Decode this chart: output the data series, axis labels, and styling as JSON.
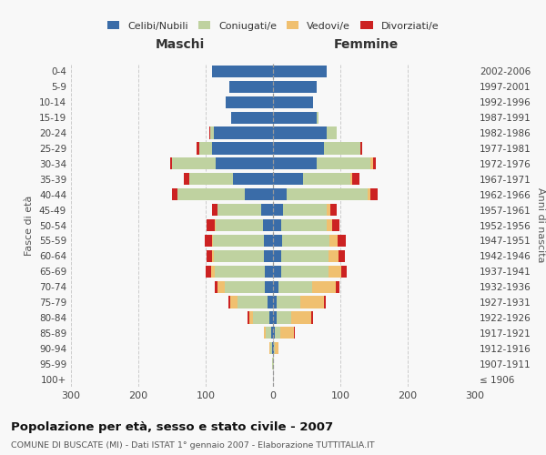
{
  "age_groups": [
    "100+",
    "95-99",
    "90-94",
    "85-89",
    "80-84",
    "75-79",
    "70-74",
    "65-69",
    "60-64",
    "55-59",
    "50-54",
    "45-49",
    "40-44",
    "35-39",
    "30-34",
    "25-29",
    "20-24",
    "15-19",
    "10-14",
    "5-9",
    "0-4"
  ],
  "birth_years": [
    "≤ 1906",
    "1907-1911",
    "1912-1916",
    "1917-1921",
    "1922-1926",
    "1927-1931",
    "1932-1936",
    "1937-1941",
    "1942-1946",
    "1947-1951",
    "1952-1956",
    "1957-1961",
    "1962-1966",
    "1967-1971",
    "1972-1976",
    "1977-1981",
    "1982-1986",
    "1987-1991",
    "1992-1996",
    "1997-2001",
    "2002-2006"
  ],
  "maschi": {
    "celibi": [
      0,
      0,
      1,
      3,
      5,
      8,
      12,
      12,
      13,
      14,
      15,
      18,
      42,
      60,
      85,
      90,
      88,
      62,
      70,
      65,
      90
    ],
    "coniugati": [
      0,
      1,
      3,
      8,
      25,
      45,
      60,
      75,
      75,
      75,
      70,
      65,
      100,
      65,
      65,
      20,
      5,
      0,
      0,
      0,
      0
    ],
    "vedovi": [
      0,
      0,
      1,
      2,
      5,
      10,
      10,
      5,
      3,
      2,
      1,
      0,
      0,
      0,
      0,
      0,
      0,
      0,
      0,
      0,
      0
    ],
    "divorziati": [
      0,
      0,
      0,
      0,
      3,
      3,
      5,
      8,
      8,
      10,
      12,
      8,
      8,
      8,
      3,
      3,
      2,
      0,
      0,
      0,
      0
    ]
  },
  "femmine": {
    "nubili": [
      0,
      0,
      1,
      3,
      5,
      5,
      8,
      12,
      12,
      14,
      12,
      15,
      20,
      45,
      65,
      75,
      80,
      65,
      60,
      65,
      80
    ],
    "coniugate": [
      0,
      1,
      2,
      8,
      22,
      35,
      50,
      70,
      70,
      70,
      68,
      65,
      120,
      70,
      80,
      55,
      15,
      3,
      0,
      0,
      0
    ],
    "vedovi": [
      0,
      1,
      5,
      20,
      30,
      35,
      35,
      20,
      15,
      12,
      8,
      5,
      5,
      3,
      3,
      0,
      0,
      0,
      0,
      0,
      0
    ],
    "divorziati": [
      0,
      0,
      0,
      2,
      3,
      3,
      5,
      8,
      10,
      12,
      10,
      10,
      10,
      10,
      5,
      3,
      0,
      0,
      0,
      0,
      0
    ]
  },
  "colors": {
    "celibi": "#3a6ca8",
    "coniugati": "#bfd2a0",
    "vedovi": "#f0c070",
    "divorziati": "#cc2222"
  },
  "xlim": 300,
  "title": "Popolazione per età, sesso e stato civile - 2007",
  "subtitle": "COMUNE DI BUSCATE (MI) - Dati ISTAT 1° gennaio 2007 - Elaborazione TUTTITALIA.IT",
  "ylabel_left": "Fasce di età",
  "ylabel_right": "Anni di nascita",
  "xlabel_left": "Maschi",
  "xlabel_right": "Femmine",
  "bg_color": "#f8f8f8",
  "grid_color": "#cccccc",
  "legend_labels": [
    "Celibi/Nubili",
    "Coniugati/e",
    "Vedovi/e",
    "Divorziati/e"
  ]
}
